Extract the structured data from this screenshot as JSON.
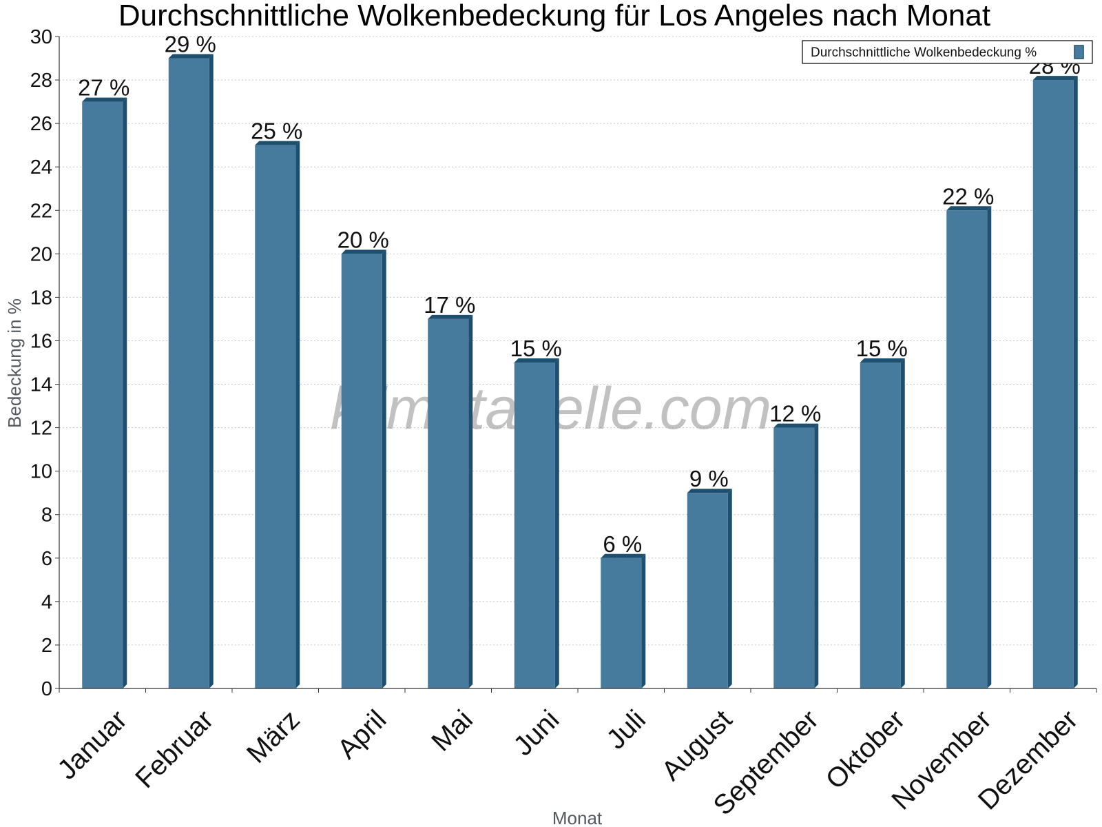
{
  "chart_data": {
    "type": "bar",
    "title": "Durchschnittliche Wolkenbedeckung für Los Angeles nach Monat",
    "xlabel": "Monat",
    "ylabel": "Bedeckung in %",
    "categories": [
      "Januar",
      "Februar",
      "März",
      "April",
      "Mai",
      "Juni",
      "Juli",
      "August",
      "September",
      "Oktober",
      "November",
      "Dezember"
    ],
    "series": [
      {
        "name": "Durchschnittliche Wolkenbedeckung %",
        "values": [
          27,
          29,
          25,
          20,
          17,
          15,
          6,
          9,
          12,
          15,
          22,
          28
        ],
        "labels": [
          "27 %",
          "29 %",
          "25 %",
          "20 %",
          "17 %",
          "15 %",
          "6 %",
          "9 %",
          "12 %",
          "15 %",
          "22 %",
          "28 %"
        ]
      }
    ],
    "ylim": [
      0,
      30
    ],
    "yticks": [
      0,
      2,
      4,
      6,
      8,
      10,
      12,
      14,
      16,
      18,
      20,
      22,
      24,
      26,
      28,
      30
    ],
    "grid": true,
    "legend_position": "top-right",
    "colors": {
      "bar": "#467b9e",
      "bar_side": "#1f4f6e",
      "grid": "#c8c8c8"
    }
  },
  "watermark": "klimatabelle.com"
}
